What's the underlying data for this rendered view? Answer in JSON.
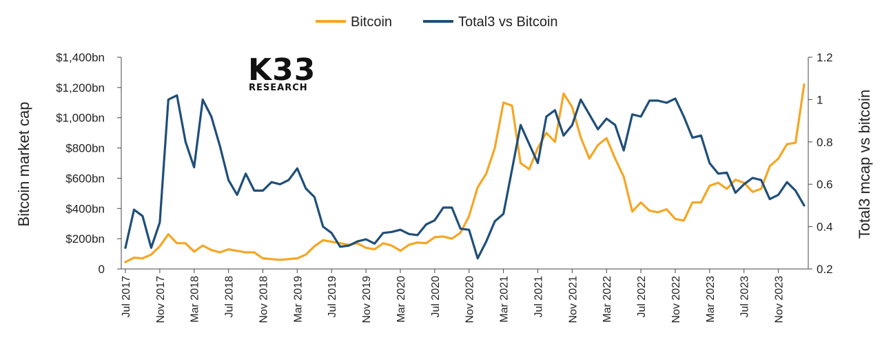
{
  "logo": {
    "brand": "K33",
    "sub": "RESEARCH"
  },
  "chart_data": {
    "type": "line",
    "grid": false,
    "legend_position": "top-center",
    "ylabel_left": "Bitcoin market cap",
    "ylabel_right": "Total3 mcap vs bitcoin",
    "ylim_left": [
      0,
      1400
    ],
    "ylim_right": [
      0.2,
      1.2
    ],
    "y_left_ticks": [
      "0",
      "$200bn",
      "$400bn",
      "$600bn",
      "$800bn",
      "$1,000bn",
      "$1,200bn",
      "$1,400bn"
    ],
    "y_right_ticks": [
      "0.2",
      "0.4",
      "0.6",
      "0.8",
      "1",
      "1.2"
    ],
    "x_ticks": [
      "Jul 2017",
      "Nov 2017",
      "Mar 2018",
      "Jul 2018",
      "Nov 2018",
      "Mar 2019",
      "Jul 2019",
      "Nov 2019",
      "Mar 2020",
      "Jul 2020",
      "Nov 2020",
      "Mar 2021",
      "Jul 2021",
      "Nov 2021",
      "Mar 2022",
      "Jul 2022",
      "Nov 2022",
      "Mar 2023",
      "Jul 2023",
      "Nov 2023"
    ],
    "series": [
      {
        "name": "Bitcoin",
        "axis": "left",
        "color": "#F5A623",
        "values": [
          45,
          75,
          70,
          95,
          150,
          230,
          170,
          170,
          115,
          155,
          125,
          110,
          130,
          120,
          110,
          110,
          70,
          65,
          60,
          65,
          70,
          95,
          150,
          190,
          180,
          170,
          160,
          170,
          140,
          130,
          170,
          155,
          120,
          160,
          175,
          170,
          210,
          215,
          200,
          240,
          350,
          540,
          630,
          800,
          1100,
          1080,
          700,
          660,
          800,
          900,
          840,
          1160,
          1070,
          870,
          730,
          820,
          865,
          730,
          610,
          380,
          440,
          385,
          375,
          395,
          330,
          320,
          440,
          440,
          550,
          570,
          530,
          590,
          570,
          510,
          530,
          680,
          730,
          825,
          835,
          1220
        ]
      },
      {
        "name": "Total3 vs Bitcoin",
        "axis": "right",
        "color": "#1F4E79",
        "values": [
          0.3,
          0.48,
          0.45,
          0.3,
          0.42,
          1.0,
          1.02,
          0.8,
          0.68,
          1.0,
          0.92,
          0.78,
          0.62,
          0.55,
          0.65,
          0.57,
          0.57,
          0.61,
          0.6,
          0.62,
          0.675,
          0.58,
          0.54,
          0.4,
          0.37,
          0.305,
          0.31,
          0.33,
          0.34,
          0.32,
          0.37,
          0.375,
          0.385,
          0.365,
          0.36,
          0.41,
          0.43,
          0.49,
          0.49,
          0.39,
          0.385,
          0.25,
          0.33,
          0.425,
          0.46,
          0.67,
          0.88,
          0.79,
          0.7,
          0.92,
          0.95,
          0.83,
          0.88,
          1.0,
          0.93,
          0.86,
          0.91,
          0.88,
          0.76,
          0.93,
          0.92,
          0.995,
          0.995,
          0.985,
          1.005,
          0.92,
          0.82,
          0.83,
          0.7,
          0.65,
          0.655,
          0.56,
          0.6,
          0.63,
          0.62,
          0.53,
          0.55,
          0.61,
          0.57,
          0.5
        ]
      }
    ]
  }
}
